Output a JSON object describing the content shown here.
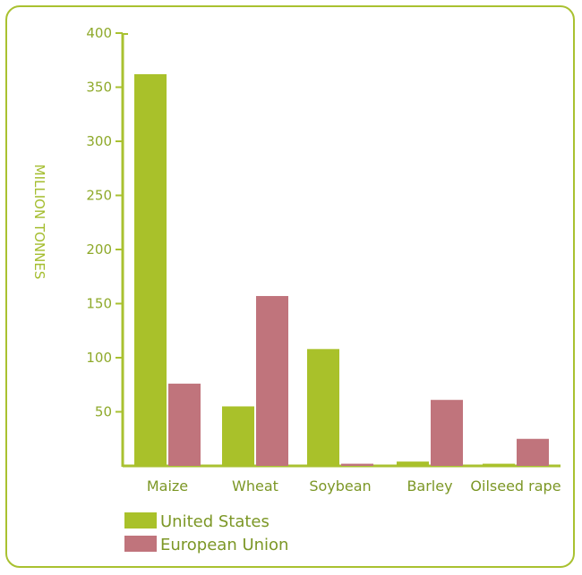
{
  "colors": {
    "frame": "#a9c130",
    "axis": "#a9c130",
    "tick_text": "#8ea92a",
    "category_text": "#7c9726"
  },
  "chart_data": {
    "type": "bar",
    "title": "",
    "xlabel": "",
    "ylabel": "MILLION TONNES",
    "ylim": [
      0,
      400
    ],
    "yticks": [
      50,
      100,
      150,
      200,
      250,
      300,
      350,
      400
    ],
    "grid": false,
    "legend_position": "bottom-left",
    "categories": [
      "Maize",
      "Wheat",
      "Soybean",
      "Barley",
      "Oilseed rape"
    ],
    "series": [
      {
        "name": "United States",
        "color": "#a9c12a",
        "values": [
          362,
          55,
          108,
          4,
          2
        ]
      },
      {
        "name": "European Union",
        "color": "#c0747c",
        "values": [
          76,
          157,
          2,
          61,
          25
        ]
      }
    ]
  }
}
